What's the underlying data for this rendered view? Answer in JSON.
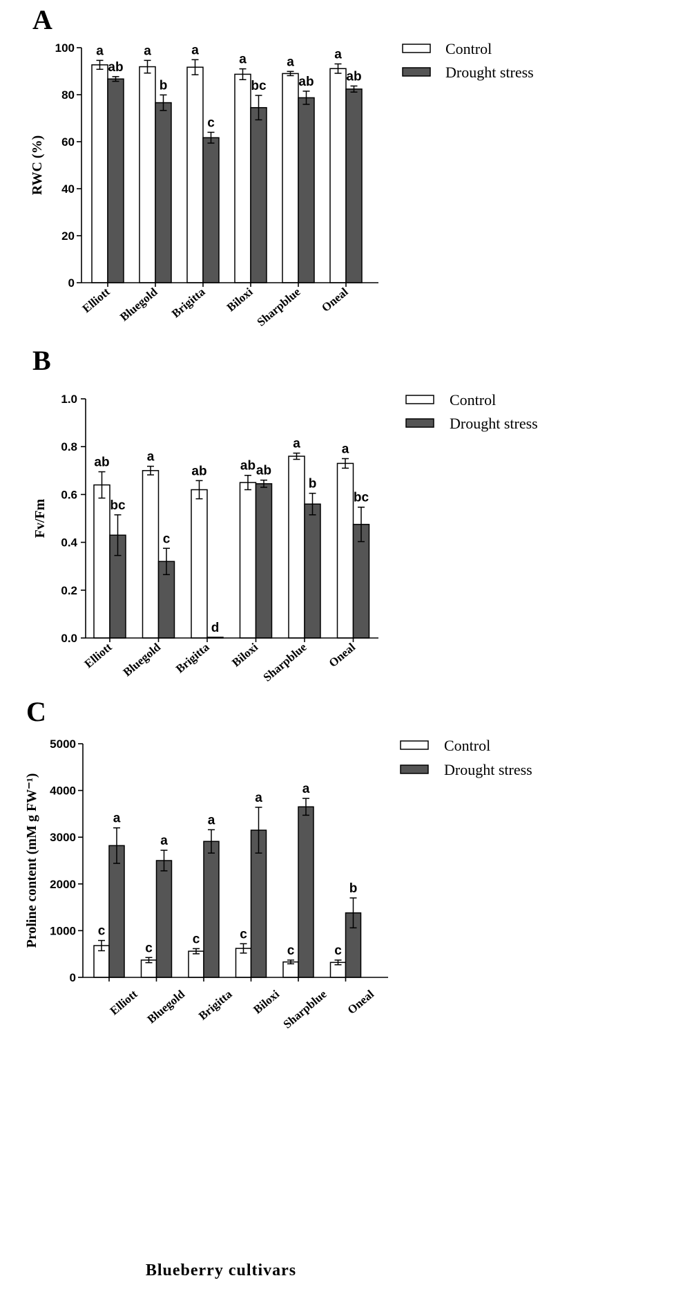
{
  "chart_data": [
    {
      "panel": "A",
      "type": "bar",
      "ylabel": "RWC (%)",
      "xlabel": "",
      "ylim": [
        0,
        100
      ],
      "yticks": [
        0,
        20,
        40,
        60,
        80,
        100
      ],
      "ytick_labels": [
        "0",
        "20",
        "40",
        "60",
        "80",
        "100"
      ],
      "categories": [
        "Elliott",
        "Bluegold",
        "Brigitta",
        "Biloxi",
        "Sharpblue",
        "Oneal"
      ],
      "legend": [
        "Control",
        "Drought stress"
      ],
      "series": [
        {
          "name": "Control",
          "color": "#ffffff",
          "values": [
            92.7,
            91.9,
            91.7,
            88.7,
            89.0,
            91.1
          ],
          "errors": [
            1.9,
            2.7,
            3.2,
            2.3,
            0.9,
            2.0
          ],
          "letters": [
            "a",
            "a",
            "a",
            "a",
            "a",
            "a"
          ]
        },
        {
          "name": "Drought stress",
          "color": "#555555",
          "values": [
            86.7,
            76.6,
            61.7,
            74.5,
            78.7,
            82.4
          ],
          "errors": [
            1.0,
            3.3,
            2.3,
            5.2,
            2.8,
            1.3
          ],
          "letters": [
            "ab",
            "b",
            "c",
            "bc",
            "ab",
            "ab"
          ]
        }
      ]
    },
    {
      "panel": "B",
      "type": "bar",
      "ylabel": "Fv/Fm",
      "xlabel": "",
      "ylim": [
        0,
        1.0
      ],
      "yticks": [
        0,
        0.2,
        0.4,
        0.6,
        0.8,
        1.0
      ],
      "ytick_labels": [
        "0.0",
        "0.2",
        "0.4",
        "0.6",
        "0.8",
        "1.0"
      ],
      "categories": [
        "Elliott",
        "Bluegold",
        "Brigitta",
        "Biloxi",
        "Sharpblue",
        "Oneal"
      ],
      "legend": [
        "Control",
        "Drought stress"
      ],
      "series": [
        {
          "name": "Control",
          "color": "#ffffff",
          "values": [
            0.64,
            0.7,
            0.62,
            0.65,
            0.76,
            0.73
          ],
          "errors": [
            0.055,
            0.018,
            0.038,
            0.03,
            0.013,
            0.02
          ],
          "letters": [
            "ab",
            "a",
            "ab",
            "ab",
            "a",
            "a"
          ]
        },
        {
          "name": "Drought stress",
          "color": "#555555",
          "values": [
            0.43,
            0.32,
            0.003,
            0.645,
            0.56,
            0.475
          ],
          "errors": [
            0.085,
            0.055,
            0.0,
            0.015,
            0.045,
            0.072
          ],
          "letters": [
            "bc",
            "c",
            "d",
            "ab",
            "b",
            "bc"
          ]
        }
      ]
    },
    {
      "panel": "C",
      "type": "bar",
      "ylabel": "Proline content (mM g FW⁻¹)",
      "xlabel": "Blueberry cultivars",
      "ylim": [
        0,
        5000
      ],
      "yticks": [
        0,
        1000,
        2000,
        3000,
        4000,
        5000
      ],
      "ytick_labels": [
        "0",
        "1000",
        "2000",
        "3000",
        "4000",
        "5000"
      ],
      "categories": [
        "Elliott",
        "Bluegold",
        "Brigitta",
        "Biloxi",
        "Sharpblue",
        "Oneal"
      ],
      "legend": [
        "Control",
        "Drought stress"
      ],
      "series": [
        {
          "name": "Control",
          "color": "#ffffff",
          "values": [
            680,
            370,
            560,
            620,
            330,
            320
          ],
          "errors": [
            110,
            55,
            55,
            100,
            40,
            50
          ],
          "letters": [
            "c",
            "c",
            "c",
            "c",
            "c",
            "c"
          ]
        },
        {
          "name": "Drought stress",
          "color": "#555555",
          "values": [
            2820,
            2500,
            2910,
            3150,
            3650,
            1380
          ],
          "errors": [
            380,
            220,
            250,
            490,
            180,
            320
          ],
          "letters": [
            "a",
            "a",
            "a",
            "a",
            "a",
            "b"
          ]
        }
      ]
    }
  ]
}
